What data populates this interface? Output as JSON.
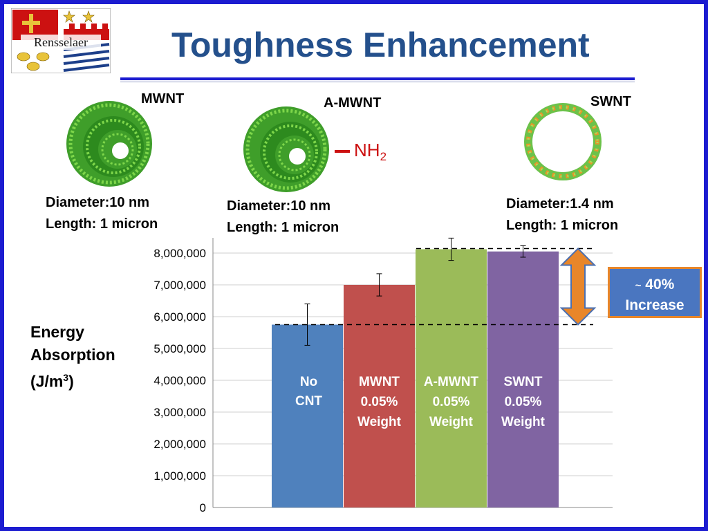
{
  "slide": {
    "title": "Toughness Enhancement",
    "logo_text": "Rensselaer"
  },
  "nanotubes": [
    {
      "name": "MWNT",
      "diameter": "Diameter:10 nm",
      "length": "Length: 1 micron"
    },
    {
      "name": "A-MWNT",
      "diameter": "Diameter:10 nm",
      "length": "Length: 1 micron",
      "group": "NH",
      "group_sub": "2"
    },
    {
      "name": "SWNT",
      "diameter": "Diameter:1.4 nm",
      "length": "Length: 1 micron"
    }
  ],
  "ylabel": {
    "line1": "Energy",
    "line2": "Absorption",
    "line3": "(J/m",
    "line3_sup": "3",
    "line3_end": ")"
  },
  "callout": {
    "prefix": "~",
    "value": "40%",
    "text": "Increase"
  },
  "colors": {
    "no_cnt": "#4f81bd",
    "mwnt": "#c0504d",
    "a_mwnt": "#9bbb59",
    "swnt": "#8064a2",
    "arrow": "#e8862a",
    "callout_bg": "#4a76c0",
    "title": "#24508c"
  },
  "chart_data": {
    "type": "bar",
    "ylim": [
      0,
      8000000
    ],
    "yticks": [
      "0",
      "1,000,000",
      "2,000,000",
      "3,000,000",
      "4,000,000",
      "5,000,000",
      "6,000,000",
      "7,000,000",
      "8,000,000"
    ],
    "grid": true,
    "bars": [
      {
        "label_lines": [
          "No",
          "CNT"
        ],
        "value": 5750000,
        "error": 650000,
        "color": "#4f81bd"
      },
      {
        "label_lines": [
          "MWNT",
          "0.05%",
          "Weight"
        ],
        "value": 7000000,
        "error": 350000,
        "color": "#c0504d"
      },
      {
        "label_lines": [
          "A-MWNT",
          "0.05%",
          "Weight"
        ],
        "value": 8120000,
        "error": 350000,
        "color": "#9bbb59"
      },
      {
        "label_lines": [
          "SWNT",
          "0.05%",
          "Weight"
        ],
        "value": 8050000,
        "error": 180000,
        "color": "#8064a2"
      }
    ],
    "reference_lines": [
      5750000,
      8140000
    ]
  }
}
